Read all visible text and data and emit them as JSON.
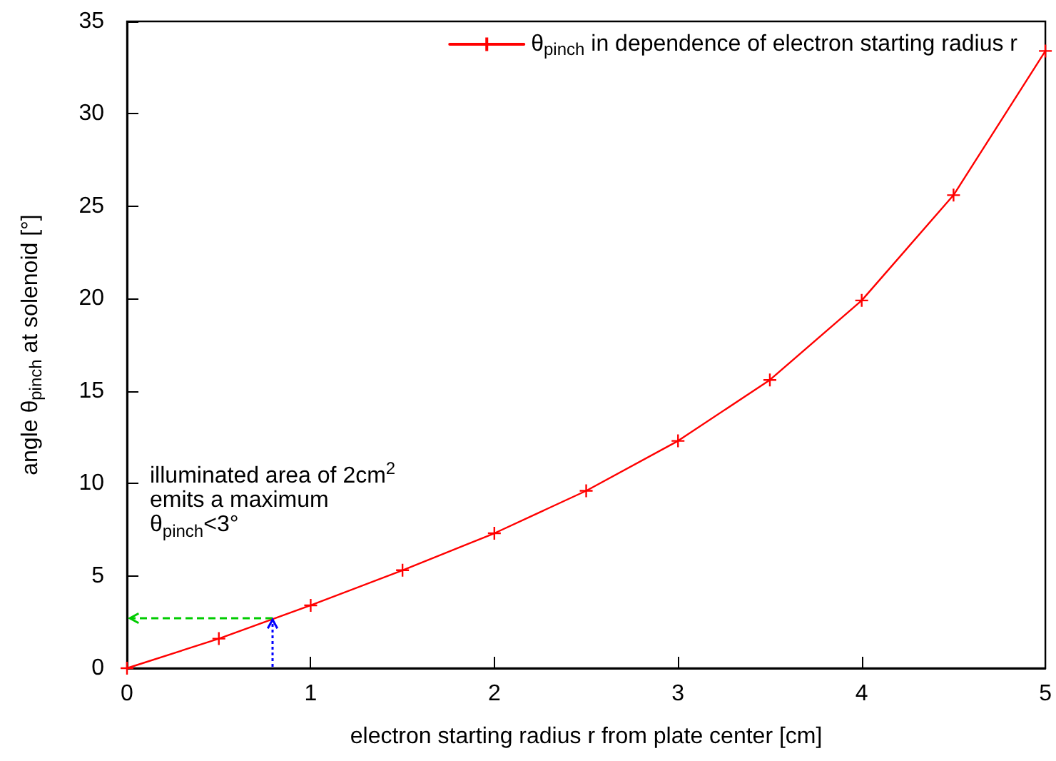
{
  "chart_data": {
    "type": "line",
    "xlabel": "electron starting radius r from plate center [cm]",
    "ylabel": "angle θ$_{pinch}$ at solenoid [°]",
    "x": [
      0,
      0.5,
      1,
      1.5,
      2,
      2.5,
      3,
      3.5,
      4,
      4.5,
      5
    ],
    "series": [
      {
        "name": "θ$_{pinch}$ in dependence of electron starting radius r",
        "color": "#ff0000",
        "values": [
          0,
          1.6,
          3.4,
          5.3,
          7.3,
          9.6,
          12.3,
          15.6,
          19.9,
          25.6,
          33.4
        ]
      }
    ],
    "xlim": [
      0,
      5
    ],
    "ylim": [
      0,
      35
    ],
    "xticks": [
      0,
      1,
      2,
      3,
      4,
      5
    ],
    "yticks": [
      0,
      5,
      10,
      15,
      20,
      25,
      30,
      35
    ],
    "legend": "top right",
    "marker": "cross",
    "line_style": "solid",
    "annotations": [
      "illuminated area of 2cm$^{2}$\nemits a maximum\nθ$_{pinch}$<3°"
    ]
  }
}
